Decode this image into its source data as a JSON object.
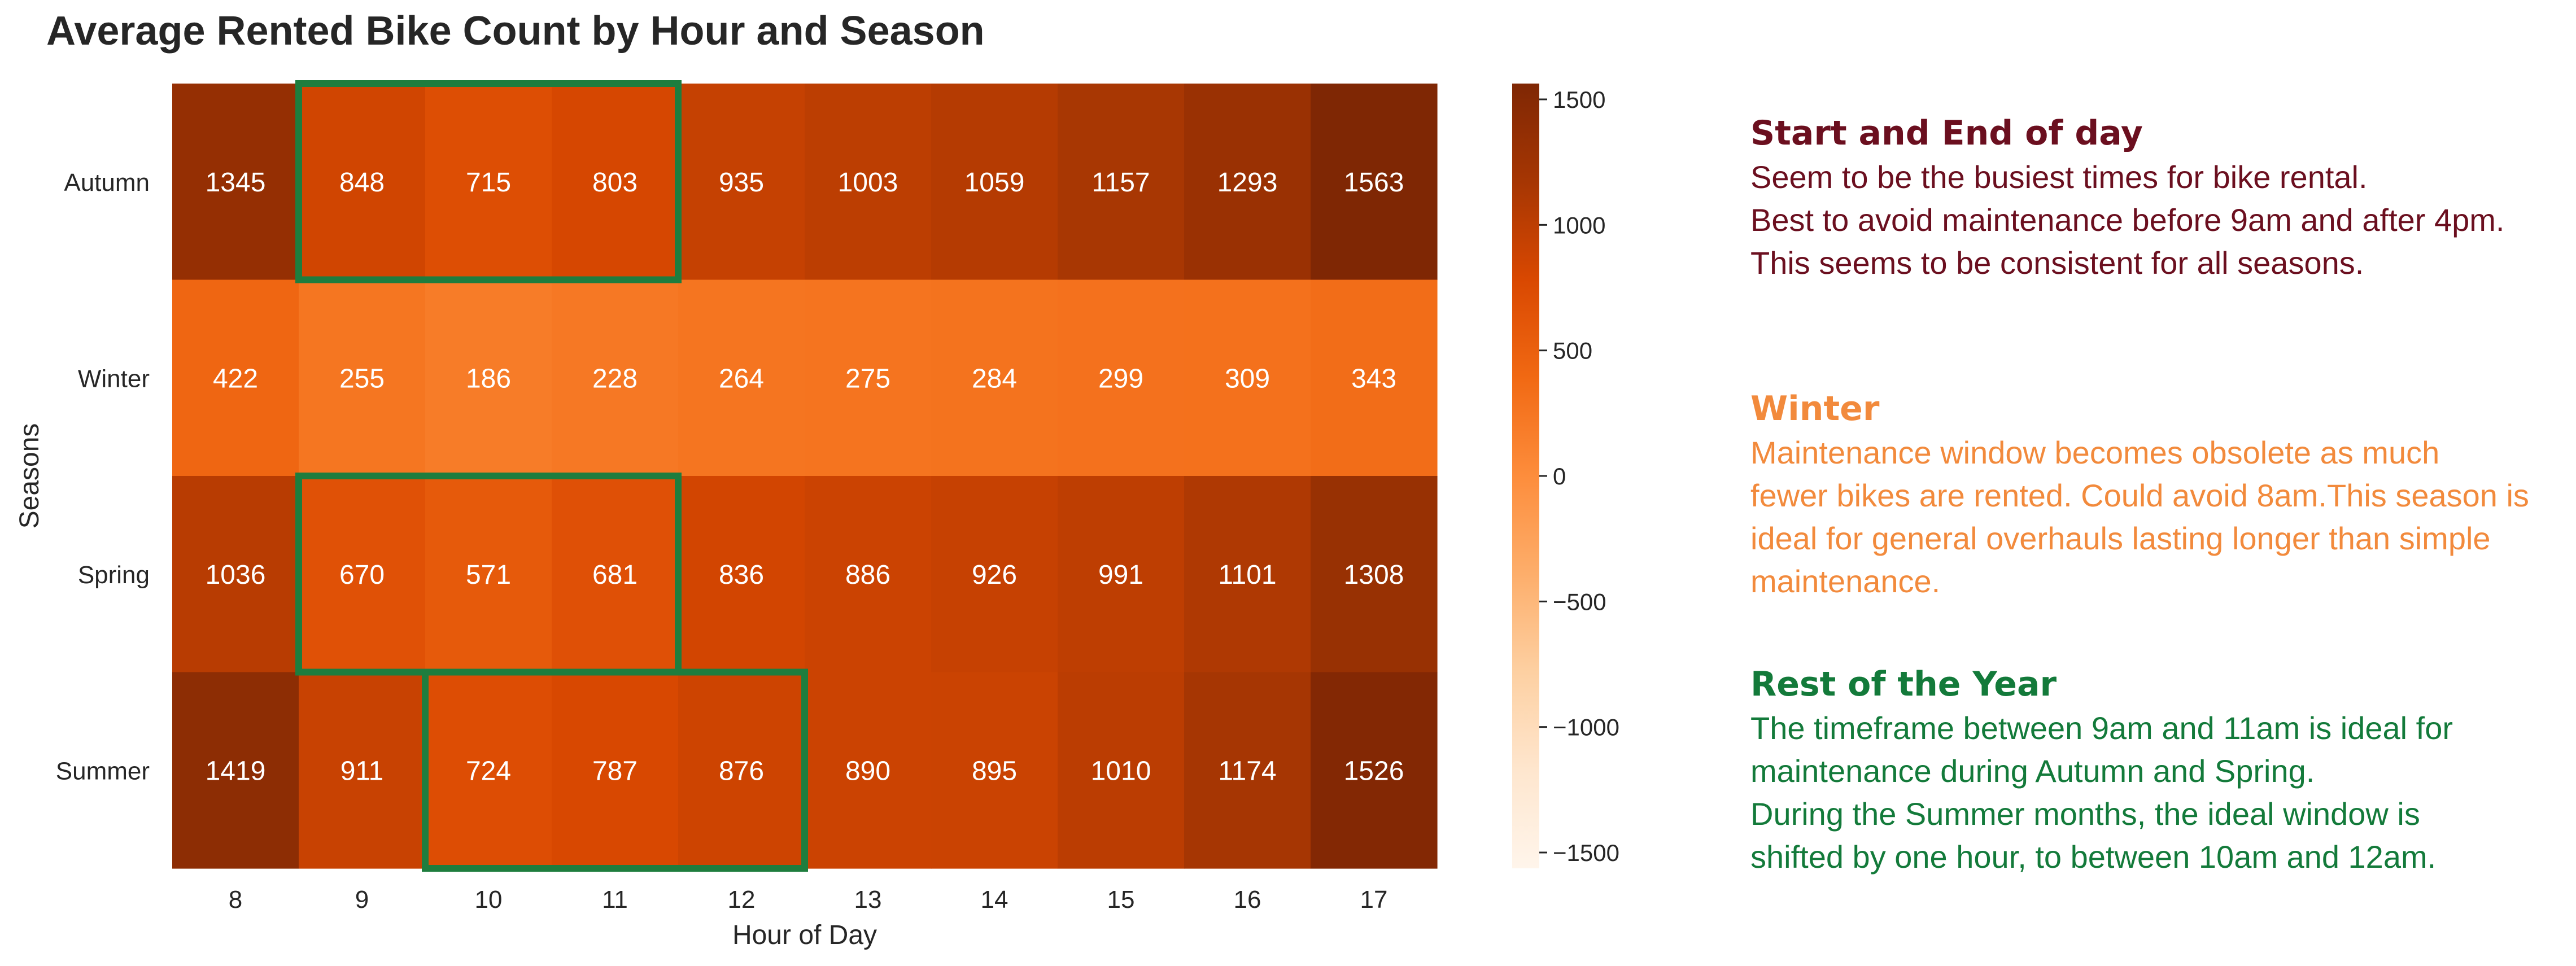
{
  "chart_data": {
    "type": "heatmap",
    "title": "Average Rented Bike Count by Hour and Season",
    "xlabel": "Hour of Day",
    "ylabel": "Seasons",
    "x_categories": [
      "8",
      "9",
      "10",
      "11",
      "12",
      "13",
      "14",
      "15",
      "16",
      "17"
    ],
    "y_categories": [
      "Autumn",
      "Winter",
      "Spring",
      "Summer"
    ],
    "values": [
      [
        1345,
        848,
        715,
        803,
        935,
        1003,
        1059,
        1157,
        1293,
        1563
      ],
      [
        422,
        255,
        186,
        228,
        264,
        275,
        284,
        299,
        309,
        343
      ],
      [
        1036,
        670,
        571,
        681,
        836,
        886,
        926,
        991,
        1101,
        1308
      ],
      [
        1419,
        911,
        724,
        787,
        876,
        890,
        895,
        1010,
        1174,
        1526
      ]
    ],
    "colorscale": "Oranges",
    "color_range": [
      -1563,
      1563
    ],
    "colorbar_ticks": [
      "1500",
      "1000",
      "500",
      "0",
      "−500",
      "−1000",
      "−1500"
    ],
    "colorbar_tick_values": [
      1500,
      1000,
      500,
      0,
      -500,
      -1000,
      -1500
    ],
    "highlight_color": "#1e7d3e",
    "highlights": [
      {
        "row": "Autumn",
        "hours": [
          "9",
          "10",
          "11"
        ]
      },
      {
        "row": "Spring",
        "hours": [
          "9",
          "10",
          "11"
        ]
      },
      {
        "row": "Summer",
        "hours": [
          "10",
          "11",
          "12"
        ]
      }
    ]
  },
  "notes": [
    {
      "title": "Start and End of day",
      "color": "#6b0f1f",
      "lines": [
        "Seem to be the busiest times for bike rental.",
        "Best to avoid maintenance before 9am and after 4pm.",
        "This seems to be consistent for all seasons."
      ]
    },
    {
      "title": "Winter",
      "color": "#f28a3c",
      "lines": [
        "Maintenance window becomes obsolete as much",
        "fewer bikes are rented. Could avoid 8am.This season is",
        "ideal for general overhauls lasting longer than simple",
        "maintenance."
      ]
    },
    {
      "title": "Rest of the Year",
      "color": "#137a3a",
      "lines": [
        "The timeframe between 9am and 11am is ideal for",
        "maintenance during Autumn and Spring.",
        "During the Summer months, the ideal window is",
        "shifted by one hour, to between 10am and 12am."
      ]
    }
  ]
}
